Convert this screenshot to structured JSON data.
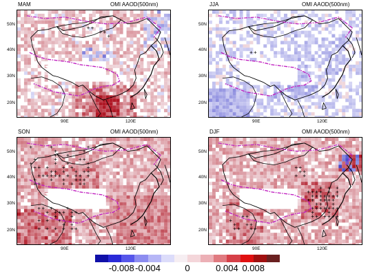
{
  "panels": [
    {
      "season": "MAM",
      "product": "OMI AAOD(500nm)",
      "lat_ticks": [
        "50N",
        "40N",
        "30N",
        "20N"
      ],
      "lon_ticks": [
        "90E",
        "120E"
      ],
      "pattern": "mam"
    },
    {
      "season": "JJA",
      "product": "OMI AAOD(500nm)",
      "lat_ticks": [
        "50N",
        "40N",
        "30N",
        "20N"
      ],
      "lon_ticks": [
        "90E",
        "120E"
      ],
      "pattern": "jja"
    },
    {
      "season": "SON",
      "product": "OMI AAOD(500nm)",
      "lat_ticks": [
        "50N",
        "40N",
        "30N",
        "20N"
      ],
      "lon_ticks": [
        "90E",
        "120E"
      ],
      "pattern": "son"
    },
    {
      "season": "DJF",
      "product": "OMI AAOD(500nm)",
      "lat_ticks": [
        "50N",
        "40N",
        "30N",
        "20N"
      ],
      "lon_ticks": [
        "90E",
        "120E"
      ],
      "pattern": "djf"
    }
  ],
  "colorbar": {
    "labels": [
      "-0.008",
      "-0.004",
      "0",
      "0.004",
      "0.008"
    ],
    "colors": [
      "#1010a8",
      "#2a2ad8",
      "#5656ea",
      "#8c8cf0",
      "#b6b6f6",
      "#dcdcfa",
      "#f6eef2",
      "#f4d6da",
      "#ecb0b6",
      "#e07a80",
      "#d64048",
      "#e01010",
      "#a01010",
      "#6a2020"
    ]
  }
}
